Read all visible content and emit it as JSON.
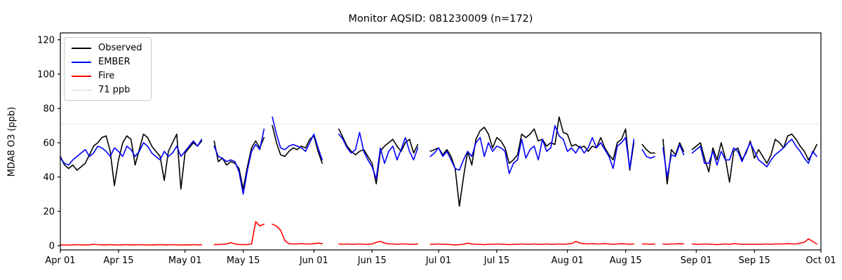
{
  "title": "Monitor AQSID: 081230009 (n=172)",
  "ylabel": "MDA8 O3 (ppb)",
  "colors": {
    "observed": "#000000",
    "ember": "#0000ff",
    "fire": "#ff0000",
    "threshold": "#d3d3d3",
    "axis": "#000000",
    "background": "#ffffff",
    "legend_border": "#cccccc"
  },
  "legend": {
    "observed": "Observed",
    "ember": "EMBER",
    "fire": "Fire",
    "threshold": "71 ppb"
  },
  "chart_data": {
    "type": "line",
    "title": "Monitor AQSID: 081230009 (n=172)",
    "xlabel": "",
    "ylabel": "MDA8 O3 (ppb)",
    "grid": false,
    "legend_position": "upper left",
    "threshold_ppb": 71,
    "ylim": [
      -2.45,
      124.0
    ],
    "yticks": [
      0,
      20,
      40,
      60,
      80,
      100,
      120
    ],
    "x_start_date": "Apr 01",
    "x_end_date": "Oct 01",
    "x_range_days": [
      0,
      183
    ],
    "x_tick_days": [
      0,
      14,
      30,
      44,
      61,
      75,
      91,
      105,
      122,
      136,
      153,
      167,
      183
    ],
    "x_tick_labels": [
      "Apr 01",
      "Apr 15",
      "May 01",
      "May 15",
      "Jun 01",
      "Jun 15",
      "Jul 01",
      "Jul 15",
      "Aug 01",
      "Aug 15",
      "Sep 01",
      "Sep 15",
      "Oct 01"
    ],
    "n_observed": 172,
    "series": [
      {
        "name": "Observed",
        "color": "#000000",
        "values": [
          52,
          47,
          45,
          47,
          44,
          46,
          48,
          53,
          58,
          60,
          63,
          64,
          55,
          35,
          50,
          60,
          64,
          62,
          47,
          56,
          65,
          63,
          58,
          55,
          52,
          38,
          55,
          60,
          65,
          33,
          54,
          57,
          60,
          58,
          61,
          null,
          null,
          61,
          49,
          51,
          47,
          49,
          48,
          45,
          33,
          46,
          57,
          61,
          57,
          63,
          null,
          70,
          60,
          53,
          52,
          55,
          57,
          56,
          58,
          57,
          62,
          64,
          55,
          48,
          null,
          null,
          null,
          68,
          63,
          58,
          55,
          53,
          55,
          56,
          52,
          48,
          36,
          55,
          58,
          60,
          62,
          58,
          55,
          60,
          62,
          54,
          59,
          null,
          null,
          55,
          56,
          57,
          53,
          56,
          52,
          45,
          23,
          40,
          55,
          47,
          62,
          67,
          69,
          65,
          57,
          63,
          61,
          57,
          48,
          50,
          53,
          65,
          63,
          65,
          68,
          61,
          62,
          58,
          60,
          59,
          75,
          66,
          65,
          58,
          59,
          57,
          58,
          55,
          58,
          57,
          63,
          57,
          53,
          50,
          60,
          62,
          68,
          44,
          60,
          null,
          59,
          56,
          54,
          54,
          null,
          62,
          36,
          56,
          53,
          60,
          55,
          null,
          56,
          58,
          60,
          51,
          43,
          57,
          50,
          60,
          51,
          37,
          55,
          57,
          50,
          54,
          61,
          51,
          56,
          52,
          48,
          53,
          62,
          60,
          57,
          64,
          65,
          62,
          58,
          55,
          50,
          54,
          59
        ]
      },
      {
        "name": "EMBER",
        "color": "#0000ff",
        "values": [
          51,
          48,
          47,
          50,
          52,
          54,
          56,
          52,
          54,
          58,
          57,
          55,
          52,
          57,
          55,
          52,
          58,
          56,
          52,
          55,
          60,
          58,
          54,
          52,
          50,
          55,
          52,
          54,
          58,
          52,
          55,
          58,
          61,
          58,
          62,
          null,
          null,
          58,
          52,
          51,
          49,
          50,
          49,
          43,
          30,
          44,
          55,
          59,
          56,
          68,
          null,
          75,
          65,
          57,
          56,
          58,
          59,
          58,
          57,
          55,
          60,
          65,
          57,
          50,
          null,
          null,
          null,
          65,
          62,
          57,
          54,
          56,
          66,
          55,
          50,
          46,
          39,
          57,
          48,
          55,
          58,
          50,
          56,
          63,
          55,
          50,
          57,
          null,
          null,
          52,
          54,
          57,
          52,
          55,
          50,
          45,
          44,
          50,
          55,
          52,
          60,
          63,
          52,
          60,
          55,
          58,
          57,
          55,
          42,
          48,
          50,
          62,
          51,
          56,
          58,
          50,
          62,
          55,
          57,
          70,
          64,
          62,
          55,
          57,
          54,
          58,
          54,
          57,
          63,
          57,
          60,
          56,
          52,
          45,
          58,
          60,
          63,
          45,
          62,
          null,
          56,
          52,
          51,
          52,
          null,
          57,
          40,
          53,
          52,
          59,
          53,
          null,
          54,
          56,
          58,
          48,
          48,
          55,
          47,
          55,
          50,
          50,
          57,
          55,
          49,
          55,
          60,
          55,
          50,
          48,
          46,
          50,
          53,
          55,
          57,
          60,
          62,
          58,
          55,
          51,
          48,
          55,
          52
        ]
      },
      {
        "name": "Fire",
        "color": "#ff0000",
        "values": [
          0.5,
          0.4,
          0.4,
          0.5,
          0.6,
          0.5,
          0.4,
          0.5,
          0.8,
          0.6,
          0.5,
          0.5,
          0.6,
          0.5,
          0.4,
          0.5,
          0.6,
          0.5,
          0.5,
          0.6,
          0.5,
          0.4,
          0.5,
          0.5,
          0.6,
          0.5,
          0.5,
          0.6,
          0.5,
          0.4,
          0.5,
          0.5,
          0.6,
          0.5,
          0.6,
          null,
          null,
          0.6,
          0.7,
          0.8,
          1.0,
          1.8,
          1.0,
          0.7,
          0.6,
          0.6,
          1.0,
          14.0,
          11.5,
          12.5,
          null,
          12.5,
          11.5,
          9.0,
          3.0,
          1.2,
          1.0,
          1.0,
          1.2,
          1.0,
          1.0,
          1.2,
          1.5,
          1.2,
          null,
          null,
          null,
          1.0,
          0.8,
          1.0,
          0.8,
          0.8,
          1.0,
          0.8,
          0.8,
          1.0,
          2.0,
          2.5,
          1.5,
          1.0,
          1.0,
          0.8,
          1.0,
          1.0,
          0.8,
          0.8,
          1.0,
          null,
          null,
          0.8,
          0.8,
          1.0,
          0.8,
          0.8,
          0.6,
          0.5,
          0.6,
          0.8,
          1.5,
          1.0,
          0.8,
          0.8,
          0.6,
          0.8,
          0.8,
          1.0,
          0.8,
          0.8,
          0.6,
          0.8,
          0.8,
          1.0,
          0.8,
          0.8,
          1.0,
          0.8,
          0.8,
          1.0,
          0.8,
          0.8,
          1.0,
          0.8,
          1.0,
          1.2,
          2.5,
          1.5,
          1.2,
          1.0,
          1.2,
          1.0,
          1.0,
          1.2,
          1.0,
          0.8,
          1.0,
          1.2,
          1.0,
          0.8,
          1.0,
          null,
          1.0,
          1.0,
          0.8,
          1.0,
          null,
          1.0,
          0.8,
          1.0,
          1.0,
          1.2,
          1.0,
          null,
          1.0,
          0.8,
          0.8,
          1.0,
          0.8,
          0.8,
          0.6,
          0.8,
          1.0,
          0.8,
          1.2,
          1.0,
          0.8,
          0.8,
          0.8,
          0.8,
          0.8,
          0.8,
          1.0,
          0.8,
          1.0,
          1.0,
          1.0,
          1.2,
          1.0,
          1.0,
          1.5,
          2.0,
          4.0,
          2.5,
          1.0
        ]
      }
    ]
  }
}
